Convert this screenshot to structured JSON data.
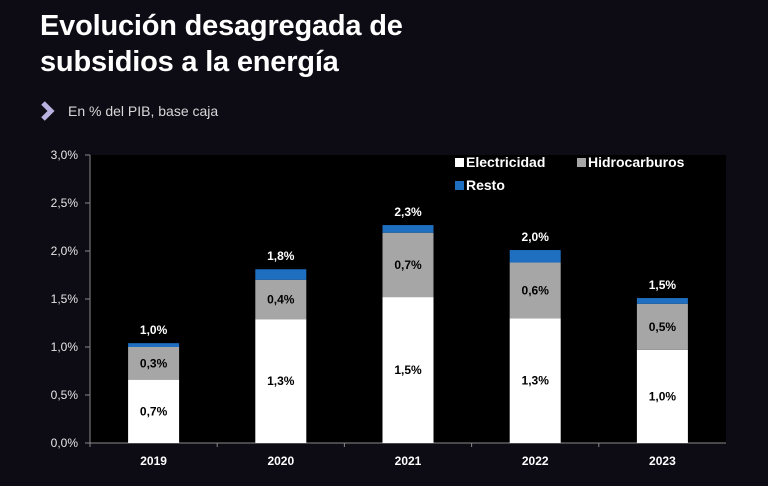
{
  "header": {
    "title_line1": "Evolución desagregada de",
    "title_line2": "subsidios a la energía",
    "subtitle": "En % del PIB, base caja"
  },
  "chart_data": {
    "type": "bar",
    "stacked": true,
    "categories": [
      "2019",
      "2020",
      "2021",
      "2022",
      "2023"
    ],
    "series": [
      {
        "name": "Electricidad",
        "color": "#ffffff",
        "label_color": "#000000",
        "values": [
          0.66,
          1.29,
          1.52,
          1.3,
          0.97
        ],
        "labels": [
          "0,7%",
          "1,3%",
          "1,5%",
          "1,3%",
          "1,0%"
        ]
      },
      {
        "name": "Hidrocarburos",
        "color": "#a6a6a6",
        "label_color": "#000000",
        "values": [
          0.34,
          0.41,
          0.67,
          0.58,
          0.48
        ],
        "labels": [
          "0,3%",
          "0,4%",
          "0,7%",
          "0,6%",
          "0,5%"
        ]
      },
      {
        "name": "Resto",
        "color": "#1f6fc1",
        "label_color": "#ffffff",
        "values": [
          0.04,
          0.11,
          0.08,
          0.13,
          0.06
        ],
        "labels": [
          "",
          "",
          "",
          "",
          ""
        ]
      }
    ],
    "totals": [
      "1,0%",
      "1,8%",
      "2,3%",
      "2,0%",
      "1,5%"
    ],
    "yticks": [
      "0,0%",
      "0,5%",
      "1,0%",
      "1,5%",
      "2,0%",
      "2,5%",
      "3,0%"
    ],
    "ylim": [
      0,
      3.0
    ],
    "ytick_step": 0.5,
    "grid": false,
    "legend_position": "top-right",
    "plot_background": "#000000"
  }
}
